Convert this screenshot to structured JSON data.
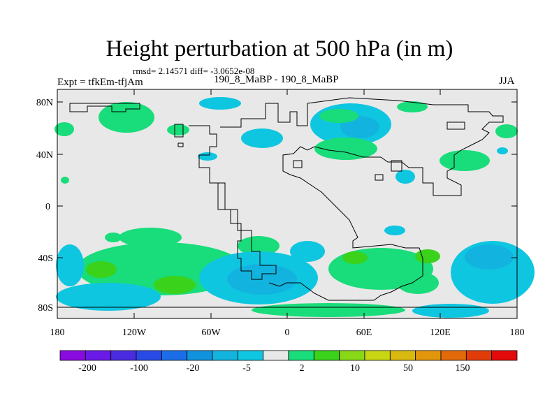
{
  "header": {
    "title": "Height perturbation at 500 hPa (in m)",
    "stats": "rmsd= 2.14571 diff= -3.0652e-08",
    "left_label": "Expt = tfkEm-tfjAm",
    "center_label": "190_8_MaBP - 190_8_MaBP",
    "right_label": "JJA"
  },
  "chart_data": {
    "type": "heatmap",
    "title": "Height perturbation at 500 hPa (in m)",
    "x_ticks": [
      "180",
      "120W",
      "60W",
      "0",
      "60E",
      "120E",
      "180"
    ],
    "y_ticks": [
      "80N",
      "40N",
      "0",
      "40S",
      "80S"
    ],
    "xlim": [
      -180,
      180
    ],
    "ylim": [
      -90,
      90
    ],
    "colorbar": {
      "colors": [
        "#8a0be0",
        "#6a1ae6",
        "#4a2be0",
        "#2a4ae6",
        "#1b6ee8",
        "#1192dc",
        "#12b4df",
        "#0fc6e0",
        "#e8e8e8",
        "#19dc7a",
        "#3ad21a",
        "#88d818",
        "#c9d613",
        "#d9b90f",
        "#e2960c",
        "#e26a0b",
        "#e23c0b",
        "#e20a0a"
      ],
      "tick_labels": [
        "-200",
        "-100",
        "-20",
        "-5",
        "2",
        "10",
        "50",
        "150"
      ]
    },
    "regions": [
      {
        "sign": "positive",
        "level": "2",
        "lon": [
          -150,
          -110
        ],
        "lat": [
          60,
          75
        ]
      },
      {
        "sign": "positive",
        "level": "2",
        "lon": [
          -180,
          -172
        ],
        "lat": [
          55,
          65
        ]
      },
      {
        "sign": "negative",
        "level": "-5",
        "lon": [
          -60,
          -30
        ],
        "lat": [
          78,
          84
        ]
      },
      {
        "sign": "negative",
        "level": "-5",
        "lon": [
          -35,
          -5
        ],
        "lat": [
          45,
          60
        ]
      },
      {
        "sign": "negative",
        "level": "-5",
        "lon": [
          15,
          85
        ],
        "lat": [
          50,
          82
        ]
      },
      {
        "sign": "negative",
        "level": "-20",
        "lon": [
          40,
          72
        ],
        "lat": [
          58,
          74
        ]
      },
      {
        "sign": "positive",
        "level": "2",
        "lon": [
          20,
          70
        ],
        "lat": [
          38,
          55
        ]
      },
      {
        "sign": "positive",
        "level": "2",
        "lon": [
          120,
          160
        ],
        "lat": [
          30,
          45
        ]
      },
      {
        "sign": "positive",
        "level": "2",
        "lon": [
          165,
          180
        ],
        "lat": [
          55,
          65
        ]
      },
      {
        "sign": "negative",
        "level": "-5",
        "lon": [
          90,
          105
        ],
        "lat": [
          22,
          32
        ]
      },
      {
        "sign": "positive",
        "level": "2",
        "lon": [
          -180,
          -30
        ],
        "lat": [
          -85,
          -30
        ]
      },
      {
        "sign": "positive",
        "level": "10",
        "lon": [
          -150,
          -130
        ],
        "lat": [
          -50,
          -38
        ]
      },
      {
        "sign": "positive",
        "level": "10",
        "lon": [
          -105,
          -80
        ],
        "lat": [
          -62,
          -48
        ]
      },
      {
        "sign": "negative",
        "level": "-5",
        "lon": [
          -180,
          -155
        ],
        "lat": [
          -75,
          -30
        ]
      },
      {
        "sign": "negative",
        "level": "-5",
        "lon": [
          -70,
          40
        ],
        "lat": [
          -78,
          -30
        ]
      },
      {
        "sign": "negative",
        "level": "-20",
        "lon": [
          -40,
          10
        ],
        "lat": [
          -68,
          -45
        ]
      },
      {
        "sign": "positive",
        "level": "2",
        "lon": [
          25,
          105
        ],
        "lat": [
          -60,
          -30
        ]
      },
      {
        "sign": "positive",
        "level": "10",
        "lon": [
          45,
          60
        ],
        "lat": [
          -45,
          -38
        ]
      },
      {
        "sign": "negative",
        "level": "-5",
        "lon": [
          100,
          180
        ],
        "lat": [
          -80,
          -25
        ]
      },
      {
        "sign": "negative",
        "level": "-20",
        "lon": [
          140,
          178
        ],
        "lat": [
          -52,
          -30
        ]
      },
      {
        "sign": "positive",
        "level": "2",
        "lon": [
          -40,
          110
        ],
        "lat": [
          -88,
          -78
        ]
      }
    ]
  }
}
